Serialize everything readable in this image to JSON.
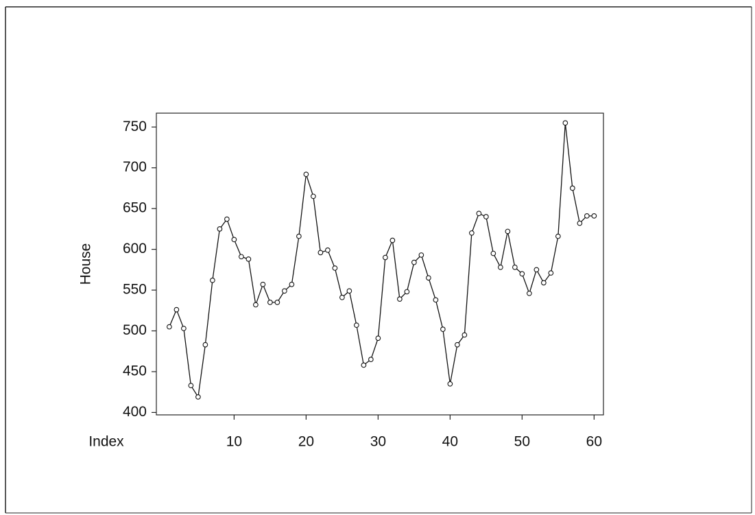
{
  "chart_data": {
    "type": "line",
    "x_label": "Index",
    "y_label": "House",
    "x": [
      1,
      2,
      3,
      4,
      5,
      6,
      7,
      8,
      9,
      10,
      11,
      12,
      13,
      14,
      15,
      16,
      17,
      18,
      19,
      20,
      21,
      22,
      23,
      24,
      25,
      26,
      27,
      28,
      29,
      30,
      31,
      32,
      33,
      34,
      35,
      36,
      37,
      38,
      39,
      40,
      41,
      42,
      43,
      44,
      45,
      46,
      47,
      48,
      49,
      50,
      51,
      52,
      53,
      54,
      55,
      56,
      57,
      58,
      59,
      60
    ],
    "series": [
      {
        "name": "House",
        "color": "#111111",
        "values": [
          505,
          526,
          503,
          433,
          419,
          483,
          562,
          625,
          637,
          612,
          591,
          588,
          532,
          557,
          535,
          535,
          549,
          557,
          616,
          692,
          665,
          596,
          599,
          577,
          541,
          549,
          507,
          458,
          465,
          491,
          590,
          611,
          539,
          548,
          584,
          593,
          565,
          538,
          502,
          435,
          483,
          495,
          620,
          644,
          640,
          595,
          578,
          622,
          578,
          570,
          546,
          575,
          559,
          571,
          616,
          755,
          675,
          632,
          641,
          641
        ]
      }
    ],
    "xlim": [
      -0.8,
      61.3
    ],
    "ylim": [
      397,
      767
    ],
    "xticks": [
      10,
      20,
      30,
      40,
      50,
      60
    ],
    "yticks": [
      400,
      450,
      500,
      550,
      600,
      650,
      700,
      750
    ],
    "grid": false
  }
}
